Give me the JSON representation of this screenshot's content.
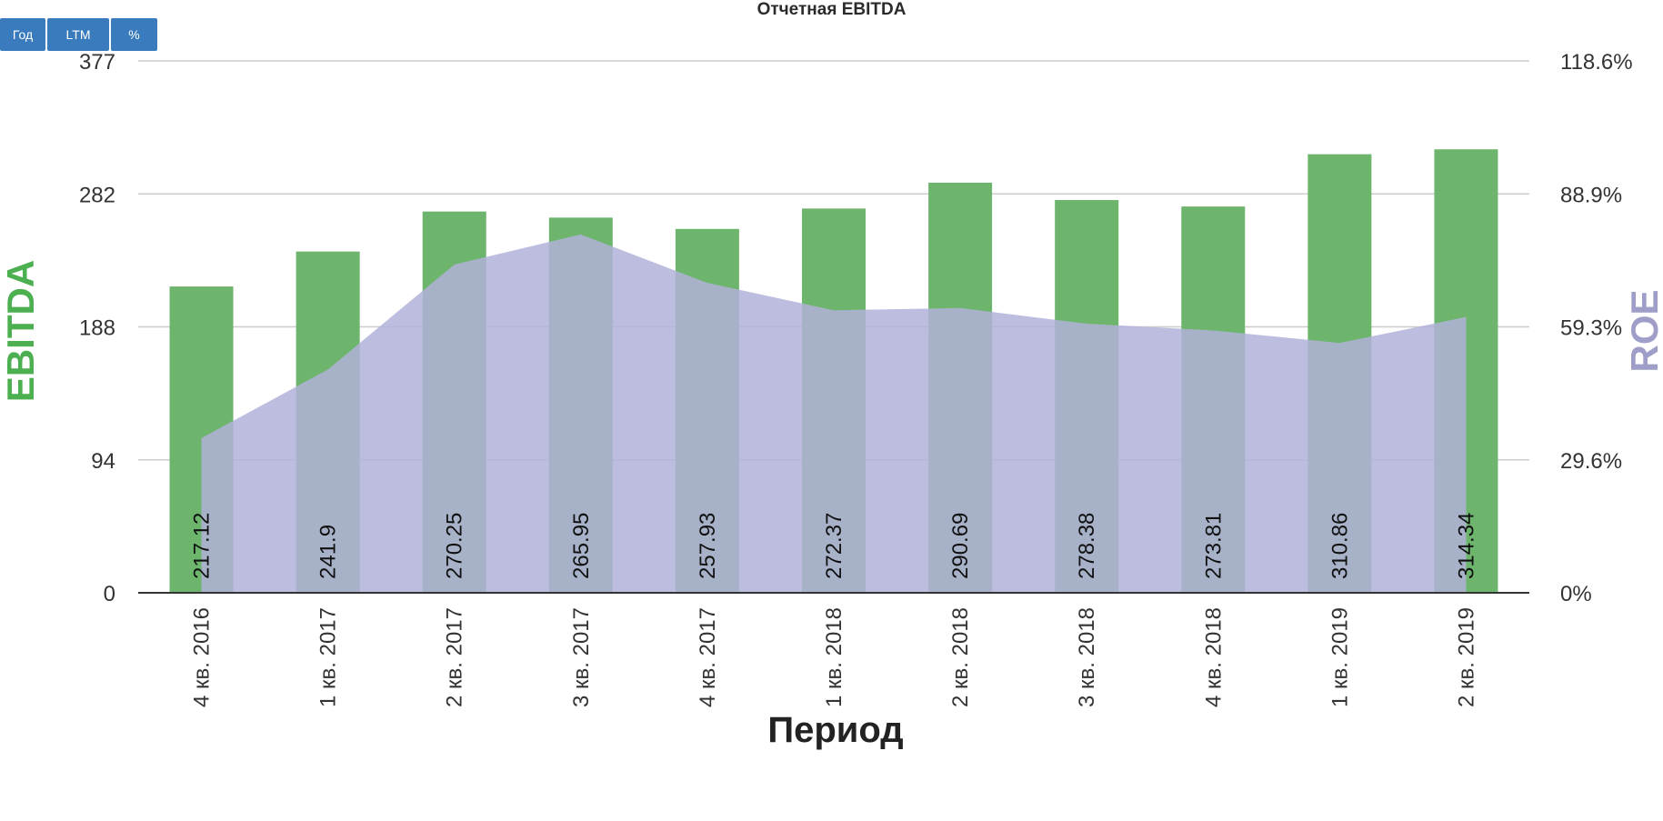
{
  "chart_data": {
    "type": "bar",
    "title": "Отчетная EBITDA",
    "categories": [
      "4 кв. 2016",
      "1 кв. 2017",
      "2 кв. 2017",
      "3 кв. 2017",
      "4 кв. 2017",
      "1 кв. 2018",
      "2 кв. 2018",
      "3 кв. 2018",
      "4 кв. 2018",
      "1 кв. 2019",
      "2 кв. 2019"
    ],
    "series": [
      {
        "name": "EBITDA",
        "type": "bar",
        "axis": "left",
        "color": "#6db56d",
        "values": [
          217.12,
          241.9,
          270.25,
          265.95,
          257.93,
          272.37,
          290.69,
          278.38,
          273.81,
          310.86,
          314.34
        ],
        "labels": [
          "217.12",
          "241.9",
          "270.25",
          "265.95",
          "257.93",
          "272.37",
          "290.69",
          "278.38",
          "273.81",
          "310.86",
          "314.34"
        ]
      },
      {
        "name": "ROE",
        "type": "area",
        "axis": "right",
        "color": "#b2b2d9",
        "values": [
          34.5,
          49.8,
          73.2,
          79.9,
          69.1,
          63.0,
          63.5,
          60.0,
          58.5,
          55.7,
          61.5
        ]
      }
    ],
    "xlabel": "Период",
    "ylabel": "EBITDA",
    "y2label": "ROE",
    "ylim": [
      0,
      377
    ],
    "y2lim": [
      0,
      118.6
    ],
    "yticks": [
      "0",
      "94",
      "188",
      "282",
      "377"
    ],
    "y2ticks": [
      "0%",
      "29.6%",
      "59.3%",
      "88.9%",
      "118.6%"
    ],
    "grid": true
  },
  "controls": {
    "buttons": [
      "Год",
      "LTM",
      "%"
    ]
  }
}
